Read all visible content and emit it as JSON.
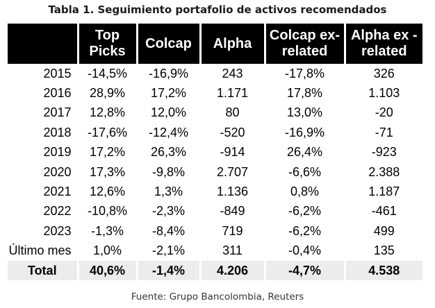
{
  "title": "Tabla 1. Seguimiento portafolio de activos recomendados",
  "table": {
    "headers": [
      {
        "line1": "",
        "line2": ""
      },
      {
        "line1": "Top",
        "line2": "Picks"
      },
      {
        "line1": "Colcap",
        "line2": ""
      },
      {
        "line1": "Alpha",
        "line2": ""
      },
      {
        "line1": "Colcap ex-",
        "line2": "related"
      },
      {
        "line1": "Alpha ex -",
        "line2": "related"
      }
    ],
    "rows": [
      [
        "2015",
        "-14,5%",
        "-16,9%",
        "243",
        "-17,8%",
        "326"
      ],
      [
        "2016",
        "28,9%",
        "17,2%",
        "1.171",
        "17,8%",
        "1.103"
      ],
      [
        "2017",
        "12,8%",
        "12,0%",
        "80",
        "13,0%",
        "-20"
      ],
      [
        "2018",
        "-17,6%",
        "-12,4%",
        "-520",
        "-16,9%",
        "-71"
      ],
      [
        "2019",
        "17,2%",
        "26,3%",
        "-914",
        "26,4%",
        "-923"
      ],
      [
        "2020",
        "17,3%",
        "-9,8%",
        "2.707",
        "-6,6%",
        "2.388"
      ],
      [
        "2021",
        "12,6%",
        "1,3%",
        "1.136",
        "0,8%",
        "1.187"
      ],
      [
        "2022",
        "-10,8%",
        "-2,3%",
        "-849",
        "-6,2%",
        "-461"
      ],
      [
        "2023",
        "-1,3%",
        "-8,4%",
        "719",
        "-6,2%",
        "499"
      ],
      [
        "Último mes",
        "1,0%",
        "-2,1%",
        "311",
        "-0,4%",
        "135"
      ]
    ],
    "total": [
      "Total",
      "40,6%",
      "-1,4%",
      "4.206",
      "-4,7%",
      "4.538"
    ]
  },
  "source": "Fuente: Grupo Bancolombia, Reuters"
}
